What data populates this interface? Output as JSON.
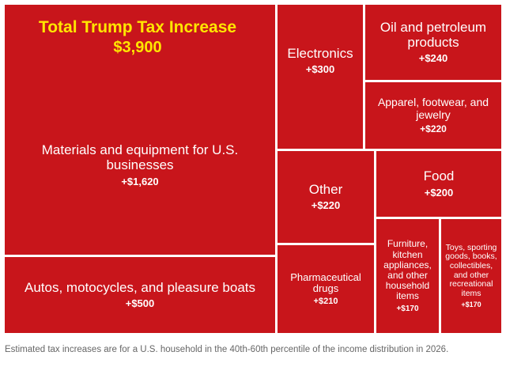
{
  "headline": {
    "title": "Total Trump Tax Increase",
    "total": "$3,900"
  },
  "chart_data": {
    "type": "treemap",
    "title": "Total Trump Tax Increase",
    "total_label": "$3,900",
    "unit": "USD",
    "categories": [
      {
        "id": "materials",
        "label": "Materials and equipment for U.S. businesses",
        "value": 1620,
        "value_label": "+$1,620"
      },
      {
        "id": "autos",
        "label": "Autos, motocycles, and pleasure boats",
        "value": 500,
        "value_label": "+$500"
      },
      {
        "id": "electronics",
        "label": "Electronics",
        "value": 300,
        "value_label": "+$300"
      },
      {
        "id": "oil",
        "label": "Oil and petroleum products",
        "value": 240,
        "value_label": "+$240"
      },
      {
        "id": "apparel",
        "label": "Apparel, footwear, and jewelry",
        "value": 220,
        "value_label": "+$220"
      },
      {
        "id": "other",
        "label": "Other",
        "value": 220,
        "value_label": "+$220"
      },
      {
        "id": "food",
        "label": "Food",
        "value": 200,
        "value_label": "+$200"
      },
      {
        "id": "pharma",
        "label": "Pharmaceutical drugs",
        "value": 210,
        "value_label": "+$210"
      },
      {
        "id": "furniture",
        "label": "Furniture, kitchen appliances, and other household items",
        "value": 170,
        "value_label": "+$170"
      },
      {
        "id": "toys",
        "label": "Toys, sporting goods, books, collectibles, and other recreational items",
        "value": 170,
        "value_label": "+$170"
      }
    ]
  },
  "footnote": "Estimated tax increases are for a U.S. household in the 40th-60th percentile of the income distribution in 2026.",
  "colors": {
    "cell": "#c8151b",
    "headline": "#ffe600",
    "text": "#ffffff",
    "footnote": "#666666"
  }
}
